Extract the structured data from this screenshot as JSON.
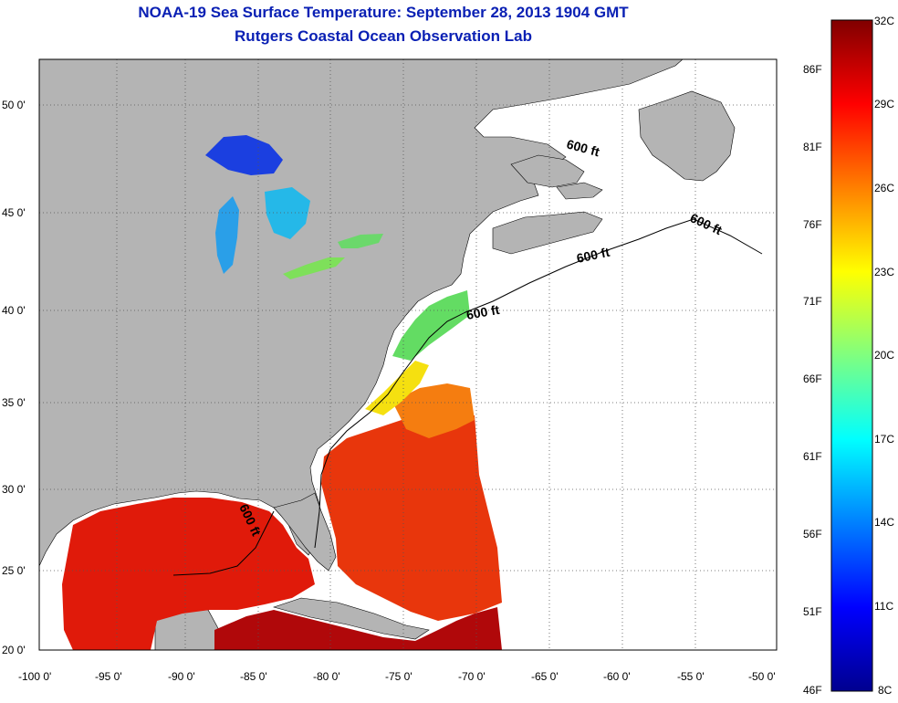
{
  "title_line1": "NOAA-19 Sea Surface Temperature:  September 28, 2013 1904 GMT",
  "title_line2": "Rutgers Coastal Ocean Observation Lab",
  "map": {
    "lon_range": [
      -100,
      -50
    ],
    "lat_range": [
      20,
      52.5
    ],
    "lon_ticks": [
      "-100 0'",
      "-95 0'",
      "-90 0'",
      "-85 0'",
      "-80 0'",
      "-75 0'",
      "-70 0'",
      "-65 0'",
      "-60 0'",
      "-55 0'",
      "-50 0'"
    ],
    "lat_ticks": [
      "50 0'",
      "45 0'",
      "40 0'",
      "35 0'",
      "30 0'",
      "25 0'",
      "20 0'"
    ],
    "grid": "dotted",
    "contour_labels": [
      "600 ft",
      "600 ft",
      "600 ft",
      "600 ft",
      "600 ft"
    ],
    "colors": {
      "land": "#b4b4b4",
      "no_data": "#ffffff"
    }
  },
  "colorbar": {
    "celsius_labels": [
      "32C",
      "29C",
      "26C",
      "23C",
      "20C",
      "17C",
      "14C",
      "11C",
      "8C"
    ],
    "fahrenheit_labels": [
      "86F",
      "81F",
      "76F",
      "71F",
      "66F",
      "61F",
      "56F",
      "51F",
      "46F"
    ],
    "range_c": [
      8,
      32
    ],
    "colormap": "jet"
  }
}
